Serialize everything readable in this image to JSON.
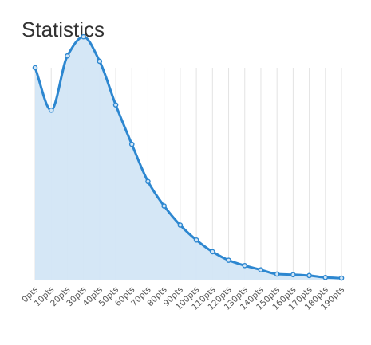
{
  "header": {
    "title": "Statistics"
  },
  "chart_data": {
    "type": "area",
    "title": "",
    "xlabel": "",
    "ylabel": "",
    "categories": [
      "0pts",
      "10pts",
      "20pts",
      "30pts",
      "40pts",
      "50pts",
      "60pts",
      "70pts",
      "80pts",
      "90pts",
      "100pts",
      "110pts",
      "120pts",
      "130pts",
      "140pts",
      "150pts",
      "160pts",
      "170pts",
      "180pts",
      "190pts"
    ],
    "series": [
      {
        "values": [
          100,
          80,
          105.5,
          114.5,
          103,
          82.5,
          64,
          46.5,
          35,
          26,
          19,
          13.5,
          9.5,
          7,
          5,
          3,
          2.7,
          2.3,
          1.4,
          1.1
        ]
      }
    ],
    "ylim": [
      0,
      120
    ],
    "grid": "vertical",
    "legend": "none",
    "colors": {
      "line": "#2d87d0",
      "fill": "#d3e6f6",
      "grid": "#e3e3e3",
      "title": "#333333"
    }
  }
}
